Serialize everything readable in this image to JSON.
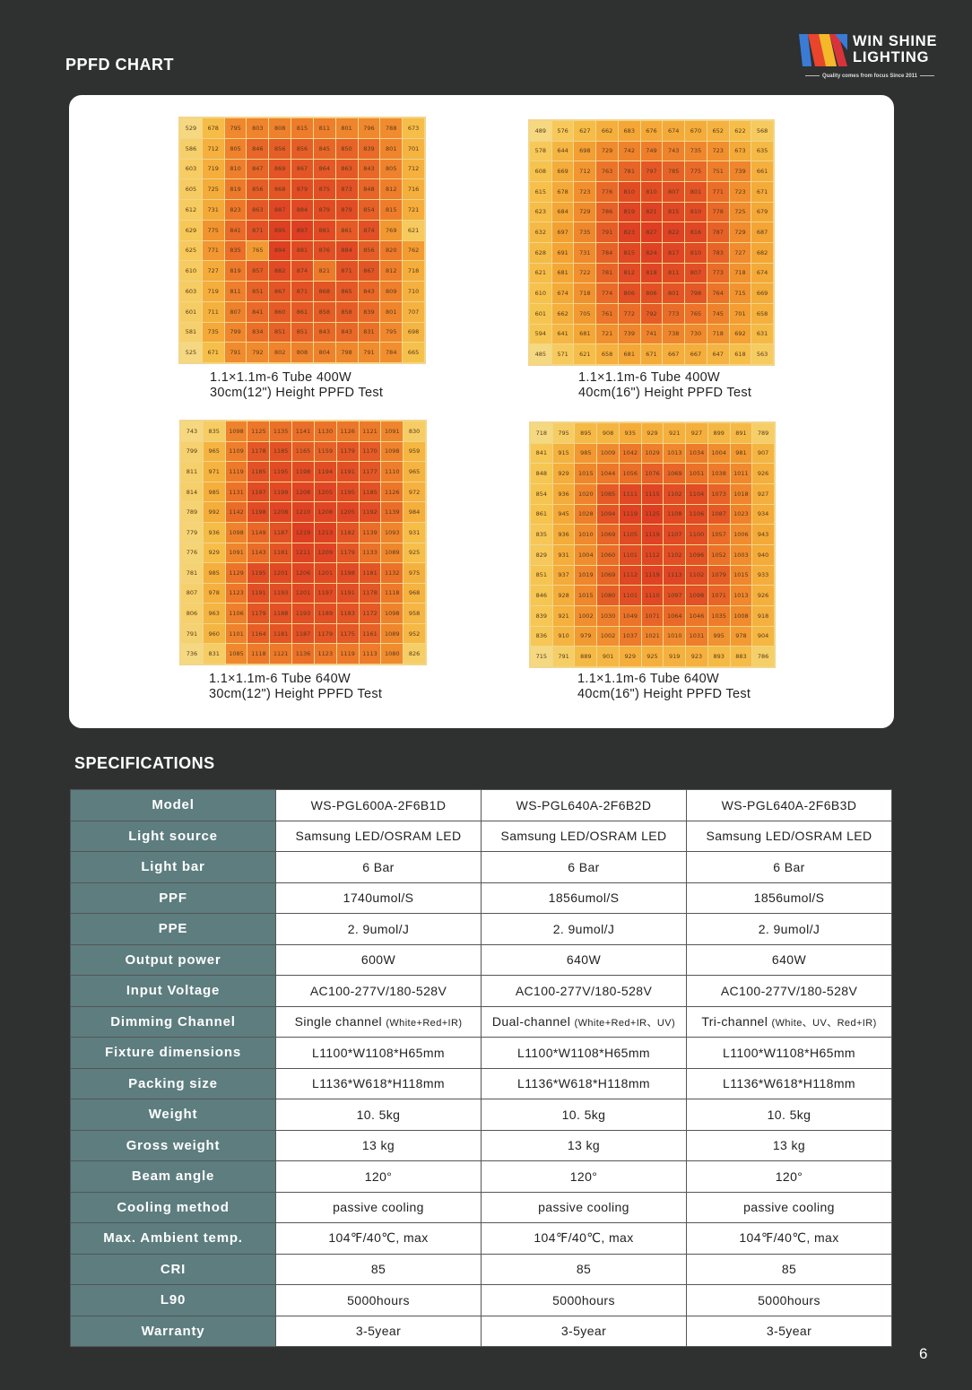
{
  "page": {
    "section_title": "PPFD CHART",
    "specs_title": "SPECIFICATIONS",
    "page_number": "6"
  },
  "brand": {
    "name": "WIN SHINE\nLIGHTING",
    "tagline": "Quality comes from focus   Since 2011",
    "colors": [
      "#3a7bd5",
      "#e8452c",
      "#f4b82a"
    ]
  },
  "heatmaps": [
    {
      "caption_line1": "1.1×1.1m-6 Tube   400W",
      "caption_line2": "30cm(12\") Height PPFD Test",
      "rows": [
        [
          529,
          678,
          795,
          803,
          808,
          815,
          811,
          801,
          796,
          788,
          673
        ],
        [
          586,
          712,
          805,
          846,
          856,
          856,
          845,
          850,
          839,
          801,
          701
        ],
        [
          603,
          719,
          810,
          847,
          869,
          867,
          864,
          863,
          843,
          805,
          712
        ],
        [
          605,
          725,
          819,
          856,
          868,
          879,
          875,
          873,
          848,
          812,
          716
        ],
        [
          612,
          731,
          823,
          863,
          887,
          884,
          879,
          879,
          854,
          815,
          721
        ],
        [
          629,
          775,
          841,
          871,
          895,
          897,
          881,
          861,
          874,
          769,
          621
        ],
        [
          625,
          771,
          835,
          765,
          894,
          881,
          876,
          884,
          856,
          820,
          762
        ],
        [
          610,
          727,
          819,
          857,
          882,
          874,
          821,
          871,
          867,
          812,
          718
        ],
        [
          603,
          719,
          811,
          851,
          867,
          871,
          868,
          865,
          843,
          809,
          710
        ],
        [
          601,
          711,
          807,
          841,
          860,
          861,
          858,
          858,
          839,
          801,
          707
        ],
        [
          581,
          735,
          799,
          834,
          851,
          851,
          843,
          843,
          831,
          795,
          698
        ],
        [
          525,
          671,
          791,
          792,
          802,
          808,
          804,
          798,
          791,
          784,
          665
        ]
      ]
    },
    {
      "caption_line1": "1.1×1.1m-6 Tube    400W",
      "caption_line2": "40cm(16\") Height PPFD Test",
      "rows": [
        [
          489,
          576,
          627,
          662,
          683,
          676,
          674,
          670,
          652,
          622,
          568
        ],
        [
          578,
          644,
          698,
          729,
          742,
          749,
          743,
          735,
          723,
          673,
          635
        ],
        [
          608,
          669,
          712,
          763,
          781,
          797,
          785,
          775,
          751,
          739,
          661
        ],
        [
          615,
          678,
          723,
          776,
          810,
          810,
          807,
          801,
          771,
          723,
          671
        ],
        [
          623,
          684,
          729,
          786,
          819,
          821,
          815,
          810,
          778,
          725,
          679
        ],
        [
          632,
          697,
          735,
          791,
          823,
          827,
          822,
          816,
          787,
          729,
          687
        ],
        [
          628,
          691,
          731,
          784,
          815,
          824,
          817,
          810,
          783,
          727,
          682
        ],
        [
          621,
          681,
          722,
          781,
          812,
          818,
          811,
          807,
          773,
          718,
          674
        ],
        [
          610,
          674,
          718,
          774,
          806,
          806,
          801,
          798,
          764,
          715,
          669
        ],
        [
          601,
          662,
          705,
          761,
          772,
          792,
          773,
          765,
          745,
          701,
          658
        ],
        [
          594,
          641,
          681,
          721,
          739,
          741,
          738,
          730,
          718,
          692,
          631
        ],
        [
          485,
          571,
          621,
          658,
          681,
          671,
          667,
          667,
          647,
          618,
          563
        ]
      ]
    },
    {
      "caption_line1": "1.1×1.1m-6 Tube   640W",
      "caption_line2": "30cm(12\") Height PPFD Test",
      "rows": [
        [
          743,
          835,
          1098,
          1125,
          1135,
          1141,
          1130,
          1126,
          1121,
          1091,
          830
        ],
        [
          799,
          965,
          1109,
          1178,
          1185,
          1165,
          1159,
          1179,
          1170,
          1098,
          959
        ],
        [
          811,
          971,
          1119,
          1185,
          1195,
          1198,
          1194,
          1191,
          1177,
          1110,
          965
        ],
        [
          814,
          985,
          1131,
          1197,
          1199,
          1208,
          1205,
          1195,
          1185,
          1126,
          972
        ],
        [
          789,
          992,
          1142,
          1198,
          1208,
          1210,
          1208,
          1205,
          1192,
          1139,
          984
        ],
        [
          779,
          936,
          1098,
          1149,
          1187,
          1219,
          1213,
          1182,
          1139,
          1093,
          931
        ],
        [
          776,
          929,
          1091,
          1143,
          1181,
          1211,
          1209,
          1179,
          1133,
          1089,
          925
        ],
        [
          781,
          985,
          1129,
          1195,
          1201,
          1206,
          1201,
          1198,
          1181,
          1132,
          975
        ],
        [
          807,
          978,
          1123,
          1191,
          1193,
          1201,
          1197,
          1191,
          1178,
          1118,
          968
        ],
        [
          806,
          963,
          1106,
          1179,
          1188,
          1193,
          1189,
          1183,
          1172,
          1098,
          958
        ],
        [
          791,
          960,
          1101,
          1164,
          1181,
          1187,
          1179,
          1175,
          1161,
          1089,
          952
        ],
        [
          736,
          831,
          1085,
          1118,
          1121,
          1136,
          1123,
          1119,
          1113,
          1080,
          826
        ]
      ]
    },
    {
      "caption_line1": "1.1×1.1m-6 Tube  640W",
      "caption_line2": "40cm(16\") Height PPFD Test",
      "rows": [
        [
          718,
          795,
          895,
          908,
          935,
          929,
          921,
          927,
          899,
          891,
          789
        ],
        [
          841,
          915,
          985,
          1009,
          1042,
          1029,
          1013,
          1034,
          1004,
          981,
          907
        ],
        [
          848,
          929,
          1015,
          1044,
          1056,
          1076,
          1069,
          1051,
          1038,
          1011,
          926
        ],
        [
          854,
          936,
          1020,
          1085,
          1111,
          1115,
          1102,
          1104,
          1073,
          1018,
          927
        ],
        [
          861,
          945,
          1028,
          1094,
          1119,
          1125,
          1108,
          1106,
          1087,
          1023,
          934
        ],
        [
          835,
          936,
          1010,
          1069,
          1105,
          1119,
          1107,
          1100,
          1057,
          1006,
          943
        ],
        [
          829,
          931,
          1004,
          1060,
          1101,
          1112,
          1102,
          1096,
          1052,
          1003,
          940
        ],
        [
          851,
          937,
          1019,
          1069,
          1112,
          1119,
          1113,
          1102,
          1079,
          1015,
          933
        ],
        [
          846,
          928,
          1015,
          1080,
          1101,
          1110,
          1097,
          1098,
          1071,
          1013,
          926
        ],
        [
          839,
          921,
          1002,
          1030,
          1049,
          1071,
          1064,
          1046,
          1035,
          1008,
          918
        ],
        [
          836,
          910,
          979,
          1002,
          1037,
          1021,
          1010,
          1031,
          995,
          978,
          904
        ],
        [
          715,
          791,
          889,
          901,
          929,
          925,
          919,
          923,
          893,
          883,
          786
        ]
      ]
    }
  ],
  "specs": {
    "rows": [
      {
        "label": "Model",
        "values": [
          "WS-PGL600A-2F6B1D",
          "WS-PGL640A-2F6B2D",
          "WS-PGL640A-2F6B3D"
        ]
      },
      {
        "label": "Light source",
        "values": [
          "Samsung LED/OSRAM LED",
          "Samsung LED/OSRAM LED",
          "Samsung LED/OSRAM LED"
        ]
      },
      {
        "label": "Light bar",
        "values": [
          "6 Bar",
          "6 Bar",
          "6 Bar"
        ]
      },
      {
        "label": "PPF",
        "values": [
          "1740umol/S",
          "1856umol/S",
          "1856umol/S"
        ]
      },
      {
        "label": "PPE",
        "values": [
          "2. 9umol/J",
          "2. 9umol/J",
          "2. 9umol/J"
        ]
      },
      {
        "label": "Output power",
        "values": [
          "600W",
          "640W",
          "640W"
        ]
      },
      {
        "label": "Input Voltage",
        "values": [
          "AC100-277V/180-528V",
          "AC100-277V/180-528V",
          "AC100-277V/180-528V"
        ]
      },
      {
        "label": "Dimming Channel",
        "values": [
          "Single channel",
          "Dual-channel",
          "Tri-channel"
        ],
        "notes": [
          "(White+Red+IR)",
          "(White+Red+IR、UV)",
          "(White、UV、Red+IR)"
        ]
      },
      {
        "label": "Fixture dimensions",
        "values": [
          "L1100*W1108*H65mm",
          "L1100*W1108*H65mm",
          "L1100*W1108*H65mm"
        ]
      },
      {
        "label": "Packing size",
        "values": [
          "L1136*W618*H118mm",
          "L1136*W618*H118mm",
          "L1136*W618*H118mm"
        ]
      },
      {
        "label": "Weight",
        "values": [
          "10. 5kg",
          "10. 5kg",
          "10. 5kg"
        ]
      },
      {
        "label": "Gross weight",
        "values": [
          "13 kg",
          "13 kg",
          "13 kg"
        ]
      },
      {
        "label": "Beam angle",
        "values": [
          "120°",
          "120°",
          "120°"
        ]
      },
      {
        "label": "Cooling method",
        "values": [
          "passive cooling",
          "passive cooling",
          "passive cooling"
        ]
      },
      {
        "label": "Max. Ambient temp.",
        "values": [
          "104℉/40℃, max",
          "104℉/40℃, max",
          "104℉/40℃, max"
        ]
      },
      {
        "label": "CRI",
        "values": [
          "85",
          "85",
          "85"
        ]
      },
      {
        "label": "L90",
        "values": [
          "5000hours",
          "5000hours",
          "5000hours"
        ]
      },
      {
        "label": "Warranty",
        "values": [
          "3-5year",
          "3-5year",
          "3-5year"
        ]
      }
    ]
  }
}
